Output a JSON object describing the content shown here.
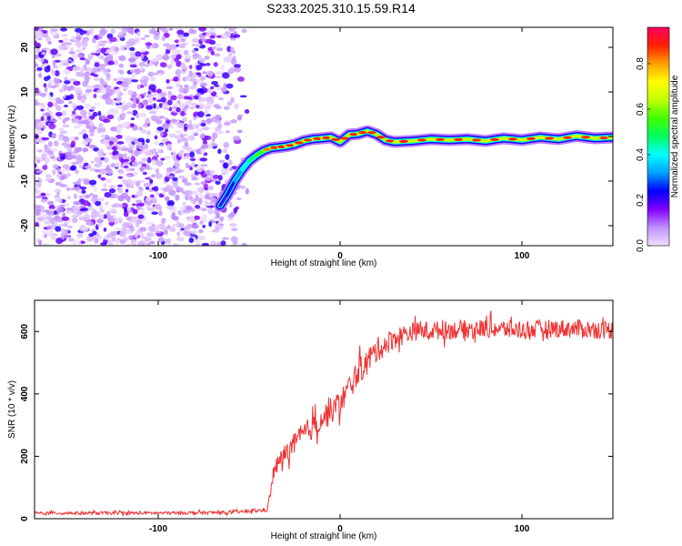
{
  "title": "S233.2025.310.15.59.R14",
  "chart_data": [
    {
      "type": "heatmap",
      "xlabel": "Height of straight line (km)",
      "ylabel": "Frequency (Hz)",
      "xlim": [
        -168,
        150
      ],
      "ylim": [
        -24.5,
        24.5
      ],
      "xticks": [
        -100,
        0,
        100
      ],
      "yticks": [
        -20,
        -10,
        0,
        10,
        20
      ],
      "colorbar": {
        "label": "Normalized spectral amplitude",
        "range": [
          0,
          0.96
        ],
        "ticks": [
          0.0,
          0.2,
          0.4,
          0.6,
          0.8
        ],
        "stops": [
          "#f0e0ff",
          "#c090ff",
          "#8000ff",
          "#0000ff",
          "#00a0ff",
          "#00ffff",
          "#00ff60",
          "#40ff00",
          "#c0ff00",
          "#ffff00",
          "#ffa000",
          "#ff2000",
          "#ff0060"
        ]
      },
      "ridge_x": [
        -66,
        -62,
        -58,
        -54,
        -50,
        -46,
        -42,
        -38,
        -34,
        -30,
        -25,
        -20,
        -15,
        -10,
        -5,
        0,
        5,
        10,
        15,
        20,
        25,
        30,
        40,
        50,
        60,
        70,
        80,
        90,
        100,
        110,
        120,
        130,
        140,
        150
      ],
      "ridge_freq": [
        -15.5,
        -13,
        -10,
        -7.5,
        -5.5,
        -4.2,
        -3.2,
        -2.6,
        -2.4,
        -2.2,
        -1.8,
        -1.0,
        -0.6,
        -0.4,
        -0.2,
        -1.2,
        0.4,
        0.6,
        1.2,
        0.5,
        -0.8,
        -1.2,
        -1.0,
        -0.6,
        -0.8,
        -0.6,
        -1.0,
        -0.4,
        -0.8,
        -0.2,
        -0.6,
        0.1,
        -0.4,
        -0.2
      ],
      "ridge_amplitude": [
        0.2,
        0.3,
        0.35,
        0.5,
        0.55,
        0.7,
        0.8,
        0.85,
        0.9,
        0.9,
        0.85,
        0.9,
        0.85,
        0.9,
        0.85,
        0.9,
        0.85,
        0.9,
        0.85,
        0.9,
        0.85,
        0.9,
        0.9,
        0.85,
        0.9,
        0.85,
        0.9,
        0.85,
        0.9,
        0.85,
        0.9,
        0.85,
        0.9,
        0.85
      ],
      "noise_region_x": [
        -168,
        -50
      ]
    },
    {
      "type": "line",
      "xlabel": "Height of straight line (km)",
      "ylabel": "SNR (10 * v/v)",
      "xlim": [
        -168,
        150
      ],
      "ylim": [
        0,
        700
      ],
      "xticks": [
        -100,
        0,
        100
      ],
      "yticks": [
        0,
        200,
        400,
        600
      ],
      "color": "#ee3333",
      "trend_x": [
        -168,
        -100,
        -60,
        -40,
        -36,
        -30,
        -20,
        -10,
        0,
        10,
        20,
        30,
        40,
        60,
        80,
        100,
        120,
        150
      ],
      "trend_y": [
        18,
        18,
        20,
        28,
        160,
        210,
        270,
        320,
        370,
        470,
        540,
        580,
        600,
        605,
        610,
        605,
        610,
        605
      ],
      "noise_amplitude": [
        5,
        5,
        5,
        6,
        28,
        32,
        38,
        42,
        42,
        42,
        40,
        35,
        30,
        30,
        30,
        30,
        30,
        30
      ]
    }
  ]
}
